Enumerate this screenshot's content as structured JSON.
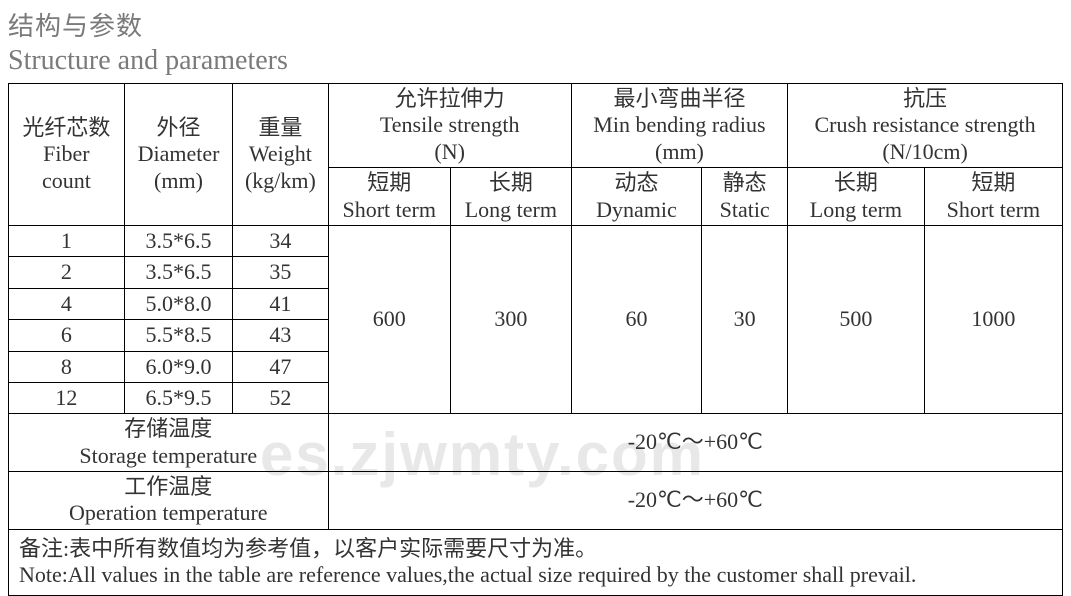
{
  "heading": {
    "cn": "结构与参数",
    "en": "Structure and parameters"
  },
  "headers": {
    "fiber_count_cn": "光纤芯数",
    "fiber_count_en1": "Fiber",
    "fiber_count_en2": "count",
    "diameter_cn": "外径",
    "diameter_en1": "Diameter",
    "diameter_en2": "(mm)",
    "weight_cn": "重量",
    "weight_en1": "Weight",
    "weight_en2": "(kg/km)",
    "tensile_cn": "允许拉伸力",
    "tensile_en": "Tensile strength",
    "tensile_unit": "(N)",
    "bending_cn": "最小弯曲半径",
    "bending_en": "Min bending radius",
    "bending_unit": "(mm)",
    "crush_cn": "抗压",
    "crush_en": "Crush resistance strength",
    "crush_unit": "(N/10cm)",
    "short_cn": "短期",
    "short_en": "Short term",
    "long_cn": "长期",
    "long_en": "Long term",
    "dynamic_cn": "动态",
    "dynamic_en": "Dynamic",
    "static_cn": "静态",
    "static_en": "Static"
  },
  "rows": [
    {
      "count": "1",
      "diameter": "3.5*6.5",
      "weight": "34"
    },
    {
      "count": "2",
      "diameter": "3.5*6.5",
      "weight": "35"
    },
    {
      "count": "4",
      "diameter": "5.0*8.0",
      "weight": "41"
    },
    {
      "count": "6",
      "diameter": "5.5*8.5",
      "weight": "43"
    },
    {
      "count": "8",
      "diameter": "6.0*9.0",
      "weight": "47"
    },
    {
      "count": "12",
      "diameter": "6.5*9.5",
      "weight": "52"
    }
  ],
  "spanned": {
    "tensile_short": "600",
    "tensile_long": "300",
    "bending_dynamic": "60",
    "bending_static": "30",
    "crush_long": "500",
    "crush_short": "1000"
  },
  "storage": {
    "label_cn": "存储温度",
    "label_en": "Storage temperature",
    "value": "-20℃～+60℃"
  },
  "operation": {
    "label_cn": "工作温度",
    "label_en": "Operation temperature",
    "value": "-20℃～+60℃"
  },
  "footnote": {
    "cn": "备注:表中所有数值均为参考值，以客户实际需要尺寸为准。",
    "en": "Note:All values in the table are reference values,the actual size required by the customer shall prevail."
  },
  "watermark": "es.zjwmty.com"
}
